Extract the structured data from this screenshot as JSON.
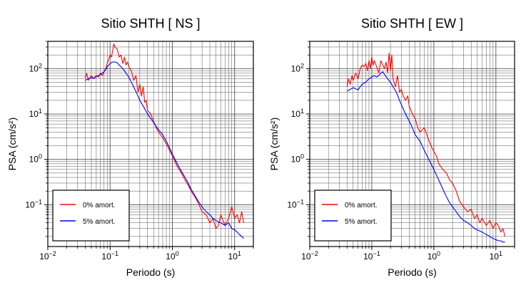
{
  "chart_data": [
    {
      "type": "line",
      "title": "Sitio SHTH [ NS ]",
      "xlabel": "Periodo (s)",
      "ylabel": "PSA (cm/s²)",
      "xscale": "log",
      "yscale": "log",
      "xlim": [
        0.01,
        20
      ],
      "ylim": [
        0.012,
        400
      ],
      "xticks": [
        {
          "value": 0.01,
          "base": "10",
          "exp": "−2"
        },
        {
          "value": 0.1,
          "base": "10",
          "exp": "−1"
        },
        {
          "value": 1,
          "base": "10",
          "exp": "0"
        },
        {
          "value": 10,
          "base": "10",
          "exp": "1"
        }
      ],
      "yticks": [
        {
          "value": 0.1,
          "base": "10",
          "exp": "−1"
        },
        {
          "value": 1,
          "base": "10",
          "exp": "0"
        },
        {
          "value": 10,
          "base": "10",
          "exp": "1"
        },
        {
          "value": 100,
          "base": "10",
          "exp": "2"
        }
      ],
      "grid": true,
      "legend_position": "bottom-left",
      "series": [
        {
          "name": "0% amort.",
          "color": "#ff0000",
          "x": [
            0.04,
            0.042,
            0.045,
            0.048,
            0.05,
            0.055,
            0.06,
            0.065,
            0.07,
            0.075,
            0.08,
            0.085,
            0.09,
            0.095,
            0.1,
            0.105,
            0.11,
            0.115,
            0.12,
            0.13,
            0.14,
            0.15,
            0.16,
            0.17,
            0.18,
            0.19,
            0.2,
            0.22,
            0.24,
            0.26,
            0.28,
            0.3,
            0.32,
            0.34,
            0.36,
            0.38,
            0.4,
            0.45,
            0.5,
            0.55,
            0.6,
            0.7,
            0.8,
            0.9,
            1.0,
            1.2,
            1.4,
            1.6,
            1.8,
            2.0,
            2.3,
            2.6,
            3.0,
            3.5,
            4.0,
            4.5,
            5.0,
            5.5,
            6.0,
            7.0,
            8.0,
            9.0,
            10.0,
            11.0,
            12.0,
            13.0,
            14.0
          ],
          "y": [
            60,
            80,
            55,
            65,
            70,
            60,
            72,
            65,
            80,
            70,
            85,
            100,
            130,
            160,
            200,
            180,
            250,
            350,
            300,
            270,
            180,
            200,
            130,
            180,
            120,
            140,
            110,
            90,
            55,
            70,
            30,
            45,
            25,
            40,
            18,
            20,
            12,
            10,
            7,
            5,
            4,
            3,
            2.2,
            1.6,
            1.2,
            0.7,
            0.5,
            0.35,
            0.27,
            0.2,
            0.15,
            0.11,
            0.07,
            0.06,
            0.04,
            0.05,
            0.03,
            0.035,
            0.06,
            0.035,
            0.05,
            0.09,
            0.05,
            0.06,
            0.04,
            0.07,
            0.04
          ]
        },
        {
          "name": "5% amort.",
          "color": "#0000ff",
          "x": [
            0.04,
            0.045,
            0.05,
            0.055,
            0.06,
            0.065,
            0.07,
            0.075,
            0.08,
            0.085,
            0.09,
            0.1,
            0.11,
            0.12,
            0.13,
            0.14,
            0.15,
            0.16,
            0.18,
            0.2,
            0.22,
            0.25,
            0.28,
            0.3,
            0.35,
            0.4,
            0.45,
            0.5,
            0.6,
            0.7,
            0.8,
            0.9,
            1.0,
            1.2,
            1.4,
            1.6,
            1.8,
            2.0,
            2.3,
            2.6,
            3.0,
            3.5,
            4.0,
            4.5,
            5.0,
            6.0,
            7.0,
            8.0,
            9.0,
            10.0,
            11.0,
            12.0,
            13.0,
            14.0
          ],
          "y": [
            55,
            60,
            63,
            62,
            66,
            70,
            75,
            80,
            85,
            95,
            110,
            130,
            140,
            140,
            135,
            120,
            110,
            100,
            80,
            65,
            50,
            35,
            25,
            20,
            14,
            10,
            8,
            6.5,
            4.5,
            3.5,
            2.5,
            1.8,
            1.3,
            0.8,
            0.55,
            0.4,
            0.3,
            0.22,
            0.16,
            0.12,
            0.09,
            0.07,
            0.06,
            0.05,
            0.045,
            0.04,
            0.035,
            0.04,
            0.03,
            0.028,
            0.025,
            0.022,
            0.02,
            0.018
          ]
        }
      ]
    },
    {
      "type": "line",
      "title": "Sitio SHTH [ EW ]",
      "xlabel": "Periodo (s)",
      "ylabel": "PSA (cm/s²)",
      "xscale": "log",
      "yscale": "log",
      "xlim": [
        0.01,
        20
      ],
      "ylim": [
        0.012,
        400
      ],
      "xticks": [
        {
          "value": 0.01,
          "base": "10",
          "exp": "−2"
        },
        {
          "value": 0.1,
          "base": "10",
          "exp": "−1"
        },
        {
          "value": 1,
          "base": "10",
          "exp": "0"
        },
        {
          "value": 10,
          "base": "10",
          "exp": "1"
        }
      ],
      "yticks": [
        {
          "value": 0.1,
          "base": "10",
          "exp": "−1"
        },
        {
          "value": 1,
          "base": "10",
          "exp": "0"
        },
        {
          "value": 10,
          "base": "10",
          "exp": "1"
        },
        {
          "value": 100,
          "base": "10",
          "exp": "2"
        }
      ],
      "grid": true,
      "legend_position": "bottom-left",
      "series": [
        {
          "name": "0% amort.",
          "color": "#ff0000",
          "x": [
            0.04,
            0.042,
            0.045,
            0.048,
            0.05,
            0.055,
            0.06,
            0.065,
            0.07,
            0.075,
            0.08,
            0.085,
            0.09,
            0.095,
            0.1,
            0.105,
            0.11,
            0.12,
            0.13,
            0.14,
            0.15,
            0.16,
            0.17,
            0.18,
            0.19,
            0.2,
            0.21,
            0.22,
            0.24,
            0.26,
            0.28,
            0.3,
            0.32,
            0.35,
            0.38,
            0.4,
            0.45,
            0.5,
            0.55,
            0.6,
            0.7,
            0.8,
            0.9,
            1.0,
            1.1,
            1.2,
            1.4,
            1.6,
            1.8,
            2.0,
            2.3,
            2.6,
            3.0,
            3.5,
            4.0,
            4.5,
            5.0,
            5.5,
            6.0,
            7.0,
            8.0,
            9.0,
            10.0,
            11.0,
            12.0,
            13.0,
            14.0
          ],
          "y": [
            40,
            60,
            45,
            70,
            55,
            80,
            60,
            100,
            120,
            110,
            130,
            90,
            150,
            100,
            180,
            120,
            150,
            110,
            80,
            150,
            120,
            100,
            140,
            80,
            220,
            90,
            200,
            60,
            40,
            70,
            30,
            35,
            25,
            20,
            25,
            15,
            10,
            8,
            5,
            4,
            5,
            3,
            2,
            1.5,
            1.2,
            0.8,
            0.6,
            0.5,
            0.35,
            0.3,
            0.2,
            0.12,
            0.09,
            0.07,
            0.08,
            0.05,
            0.06,
            0.04,
            0.05,
            0.035,
            0.045,
            0.03,
            0.04,
            0.035,
            0.025,
            0.03,
            0.02
          ]
        },
        {
          "name": "5% amort.",
          "color": "#0000ff",
          "x": [
            0.04,
            0.045,
            0.05,
            0.055,
            0.06,
            0.065,
            0.07,
            0.075,
            0.08,
            0.085,
            0.09,
            0.1,
            0.11,
            0.12,
            0.13,
            0.14,
            0.15,
            0.16,
            0.18,
            0.2,
            0.22,
            0.25,
            0.28,
            0.3,
            0.35,
            0.4,
            0.45,
            0.5,
            0.6,
            0.7,
            0.8,
            0.9,
            1.0,
            1.2,
            1.4,
            1.6,
            1.8,
            2.0,
            2.3,
            2.6,
            3.0,
            3.5,
            4.0,
            4.5,
            5.0,
            6.0,
            7.0,
            8.0,
            9.0,
            10.0,
            11.0,
            12.0,
            13.0,
            14.0
          ],
          "y": [
            32,
            35,
            38,
            36,
            34,
            40,
            45,
            48,
            50,
            55,
            60,
            65,
            70,
            65,
            70,
            80,
            85,
            75,
            60,
            50,
            40,
            30,
            20,
            16,
            10,
            7,
            5,
            3.5,
            2.5,
            1.6,
            1.1,
            0.8,
            0.6,
            0.35,
            0.22,
            0.15,
            0.11,
            0.09,
            0.07,
            0.055,
            0.045,
            0.04,
            0.035,
            0.03,
            0.028,
            0.025,
            0.022,
            0.02,
            0.018,
            0.017,
            0.016,
            0.016,
            0.015,
            0.015
          ]
        }
      ]
    }
  ]
}
